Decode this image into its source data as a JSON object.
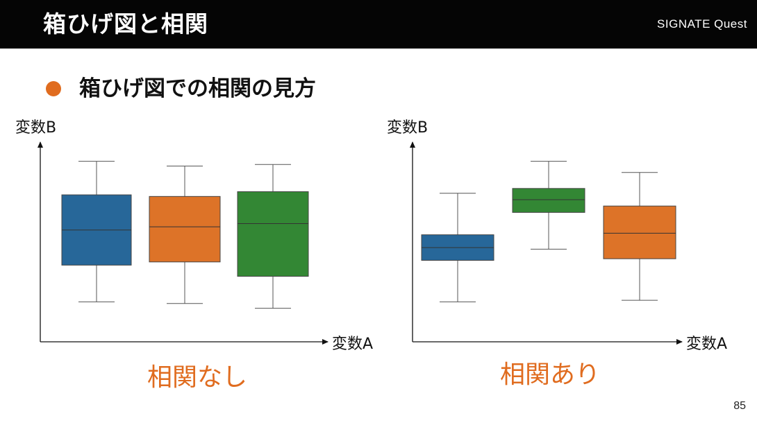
{
  "header": {
    "title": "箱ひげ図と相関",
    "brand": "SIGNATE Quest"
  },
  "bullet": {
    "text": "箱ひげ図での相関の見方",
    "color": "#e06c1f"
  },
  "page_number": "85",
  "colors": {
    "blue": "#276799",
    "orange": "#dd7328",
    "green": "#338734",
    "caption": "#e06c1f"
  },
  "panels": [
    {
      "name": "no-correlation",
      "y_axis_label": "変数B",
      "x_axis_label": "変数A",
      "caption": "相関なし",
      "boxes": [
        {
          "color_key": "blue",
          "whisker_low": 0.25,
          "q1": 0.48,
          "median": 0.7,
          "q3": 0.92,
          "whisker_high": 1.13
        },
        {
          "color_key": "orange",
          "whisker_low": 0.24,
          "q1": 0.5,
          "median": 0.72,
          "q3": 0.91,
          "whisker_high": 1.1
        },
        {
          "color_key": "green",
          "whisker_low": 0.21,
          "q1": 0.41,
          "median": 0.74,
          "q3": 0.94,
          "whisker_high": 1.11
        }
      ]
    },
    {
      "name": "correlation",
      "y_axis_label": "変数B",
      "x_axis_label": "変数A",
      "caption": "相関あり",
      "boxes": [
        {
          "color_key": "blue",
          "whisker_low": 0.25,
          "q1": 0.51,
          "median": 0.59,
          "q3": 0.67,
          "whisker_high": 0.93
        },
        {
          "color_key": "green",
          "whisker_low": 0.58,
          "q1": 0.81,
          "median": 0.89,
          "q3": 0.96,
          "whisker_high": 1.13
        },
        {
          "color_key": "orange",
          "whisker_low": 0.26,
          "q1": 0.52,
          "median": 0.68,
          "q3": 0.85,
          "whisker_high": 1.06
        }
      ]
    }
  ],
  "chart_data": [
    {
      "type": "box",
      "title": "相関なし",
      "xlabel": "変数A",
      "ylabel": "変数B",
      "ylim": [
        0,
        1.25
      ],
      "series": [
        {
          "whisker_low": 0.25,
          "q1": 0.48,
          "median": 0.7,
          "q3": 0.92,
          "whisker_high": 1.13
        },
        {
          "whisker_low": 0.24,
          "q1": 0.5,
          "median": 0.72,
          "q3": 0.91,
          "whisker_high": 1.1
        },
        {
          "whisker_low": 0.21,
          "q1": 0.41,
          "median": 0.74,
          "q3": 0.94,
          "whisker_high": 1.11
        }
      ]
    },
    {
      "type": "box",
      "title": "相関あり",
      "xlabel": "変数A",
      "ylabel": "変数B",
      "ylim": [
        0,
        1.25
      ],
      "series": [
        {
          "whisker_low": 0.25,
          "q1": 0.51,
          "median": 0.59,
          "q3": 0.67,
          "whisker_high": 0.93
        },
        {
          "whisker_low": 0.58,
          "q1": 0.81,
          "median": 0.89,
          "q3": 0.96,
          "whisker_high": 1.13
        },
        {
          "whisker_low": 0.26,
          "q1": 0.52,
          "median": 0.68,
          "q3": 0.85,
          "whisker_high": 1.06
        }
      ]
    }
  ]
}
